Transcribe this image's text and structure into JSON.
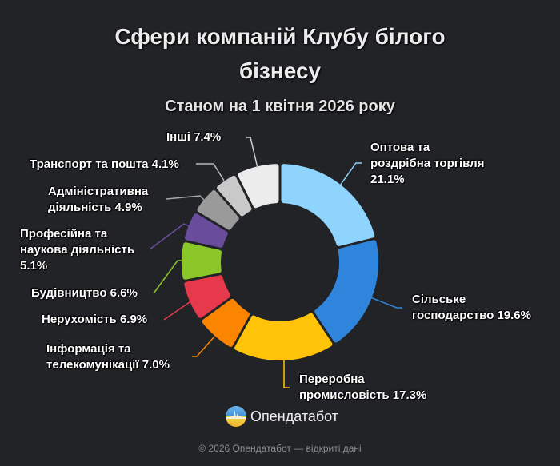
{
  "header": {
    "title_lines": [
      "Сфери компаній Клубу білого",
      "бізнесу"
    ],
    "subtitle": "Станом на 1 квітня 2026 року"
  },
  "labels": [
    {
      "lines": [
        "Оптова та",
        "роздрібна торгівля",
        "21.1%"
      ]
    },
    {
      "lines": [
        "Сільське",
        "господарство 19.6%"
      ]
    },
    {
      "lines": [
        "Переробна",
        "промисловість 17.3%"
      ]
    },
    {
      "lines": [
        "Інформація та",
        "телекомунікації 7.0%"
      ]
    },
    {
      "lines": [
        "Нерухомість 6.9%"
      ]
    },
    {
      "lines": [
        "Будівництво 6.6%"
      ]
    },
    {
      "lines": [
        "Професійна та",
        "наукова діяльність",
        "5.1%"
      ]
    },
    {
      "lines": [
        "Адміністративна",
        "діяльність 4.9%"
      ]
    },
    {
      "lines": [
        "Транспорт та пошта 4.1%"
      ]
    },
    {
      "lines": [
        "Інші 7.4%"
      ]
    }
  ],
  "brand": {
    "name": "Опендатабот",
    "logo_icon": "opendatabot-logo-icon"
  },
  "footer": {
    "text": "© 2026 Опендатабот — відкриті дані"
  },
  "chart_data": {
    "type": "pie",
    "variant": "donut",
    "title": "Сфери компаній Клубу білого бізнесу",
    "subtitle": "Станом на 1 квітня 2026 року",
    "categories": [
      "Оптова та роздрібна торгівля",
      "Сільське господарство",
      "Переробна промисловість",
      "Інформація та телекомунікації",
      "Нерухомість",
      "Будівництво",
      "Професійна та наукова діяльність",
      "Адміністративна діяльність",
      "Транспорт та пошта",
      "Інші"
    ],
    "values": [
      21.1,
      19.6,
      17.3,
      7.0,
      6.9,
      6.6,
      5.1,
      4.9,
      4.1,
      7.4
    ],
    "unit": "%",
    "colors": [
      "#8fd4fd",
      "#2f84dc",
      "#ffc30a",
      "#fb8500",
      "#e6394b",
      "#8cc72a",
      "#6a4c9c",
      "#9a9a9a",
      "#c9c9c9",
      "#ececec"
    ],
    "leader_colors": [
      "#8fd4fd",
      "#2f84dc",
      "#ffc30a",
      "#fb8500",
      "#e6394b",
      "#8cc72a",
      "#6a4c9c",
      "#a8a8a8",
      "#b8b8b8",
      "#cfcfcf"
    ],
    "start_angle": "12 o'clock, clockwise",
    "legend": "none (direct labels with leader lines)",
    "background": "#212327"
  }
}
